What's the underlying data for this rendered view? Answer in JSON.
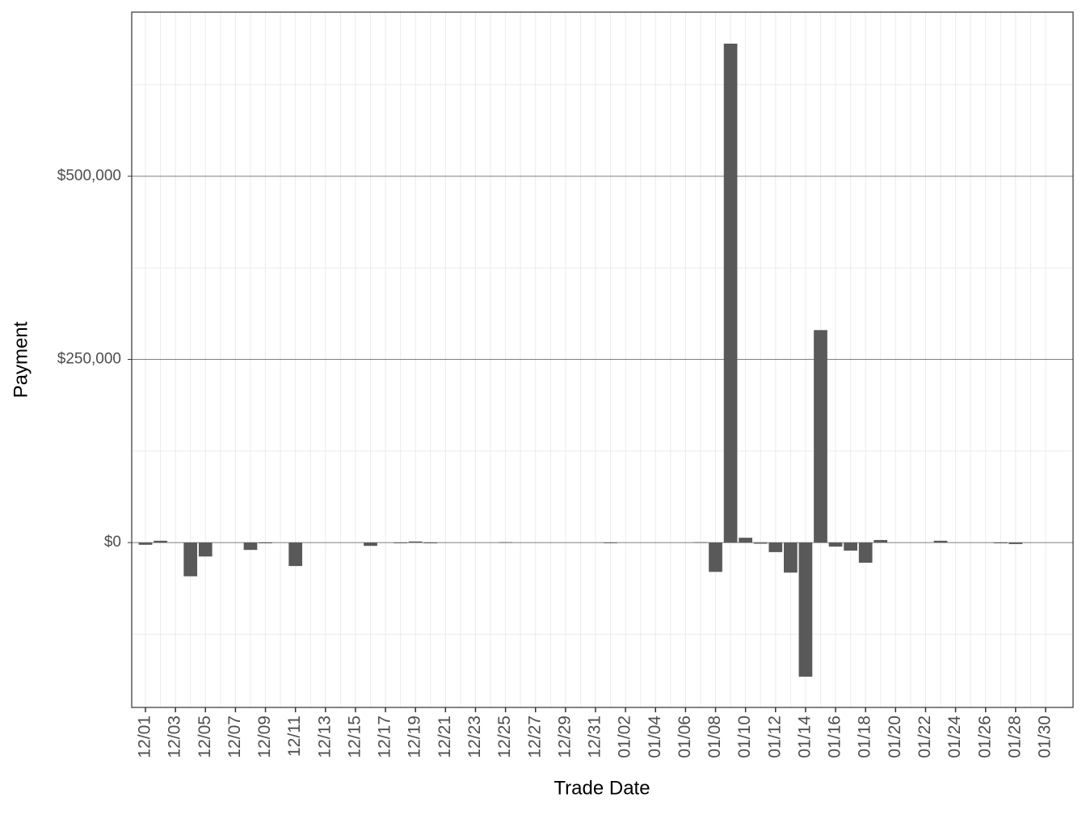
{
  "chart_data": {
    "type": "bar",
    "x_label": "Trade Date",
    "y_label": "Payment",
    "categories": [
      "12/01",
      null,
      "12/03",
      null,
      "12/05",
      null,
      "12/07",
      null,
      "12/09",
      null,
      "12/11",
      null,
      "12/13",
      null,
      "12/15",
      null,
      "12/17",
      null,
      "12/19",
      null,
      "12/21",
      null,
      "12/23",
      null,
      "12/25",
      null,
      "12/27",
      null,
      "12/29",
      null,
      "12/31",
      null,
      "01/02",
      null,
      "01/04",
      null,
      "01/06",
      null,
      "01/08",
      null,
      "01/10",
      null,
      "01/12",
      null,
      "01/14",
      null,
      "01/16",
      null,
      "01/18",
      null,
      "01/20",
      null,
      "01/22",
      null,
      "01/24",
      null,
      "01/26",
      null,
      "01/28",
      null,
      "01/30"
    ],
    "values": [
      -3000,
      2500,
      null,
      -46000,
      -19000,
      null,
      null,
      -10000,
      -1000,
      null,
      -32000,
      null,
      null,
      null,
      null,
      -4500,
      null,
      -500,
      1500,
      -1000,
      null,
      null,
      null,
      null,
      500,
      null,
      null,
      null,
      null,
      null,
      null,
      -500,
      null,
      null,
      null,
      null,
      null,
      500,
      -40000,
      681000,
      6600,
      -1500,
      -13000,
      -41000,
      -183000,
      290000,
      -5500,
      -11000,
      -27500,
      3500,
      null,
      null,
      null,
      2500,
      null,
      null,
      null,
      -1000,
      -2000,
      null,
      null
    ],
    "color": "#595959",
    "ylim": [
      -225000,
      724000
    ],
    "yticks": [
      {
        "value": 0,
        "label": "$0"
      },
      {
        "value": 250000,
        "label": "$250,000"
      },
      {
        "value": 500000,
        "label": "$500,000"
      }
    ],
    "grid": true
  }
}
